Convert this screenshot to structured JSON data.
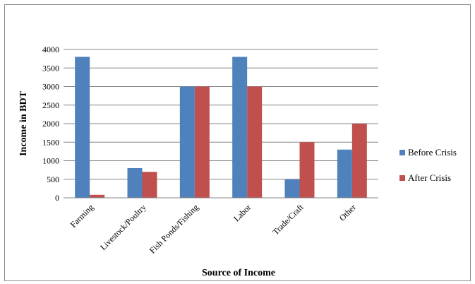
{
  "chart_data": {
    "type": "bar",
    "title": "",
    "xlabel": "Source of Income",
    "ylabel": "Income in BDT",
    "categories": [
      "Farming",
      "Livestock/Poultry",
      "Fish Ponds/Fishing",
      "Labor",
      "Trade/Craft",
      "Other"
    ],
    "series": [
      {
        "name": "Before Crisis",
        "color": "#4f81bd",
        "values": [
          3800,
          800,
          3000,
          3800,
          500,
          1300
        ]
      },
      {
        "name": "After Crisis",
        "color": "#c0504d",
        "values": [
          80,
          700,
          3000,
          3000,
          1500,
          2000
        ]
      }
    ],
    "yticks": [
      0,
      500,
      1000,
      1500,
      2000,
      2500,
      3000,
      3500,
      4000
    ],
    "ylim": [
      0,
      4000
    ],
    "grid": true,
    "legend_position": "right"
  }
}
